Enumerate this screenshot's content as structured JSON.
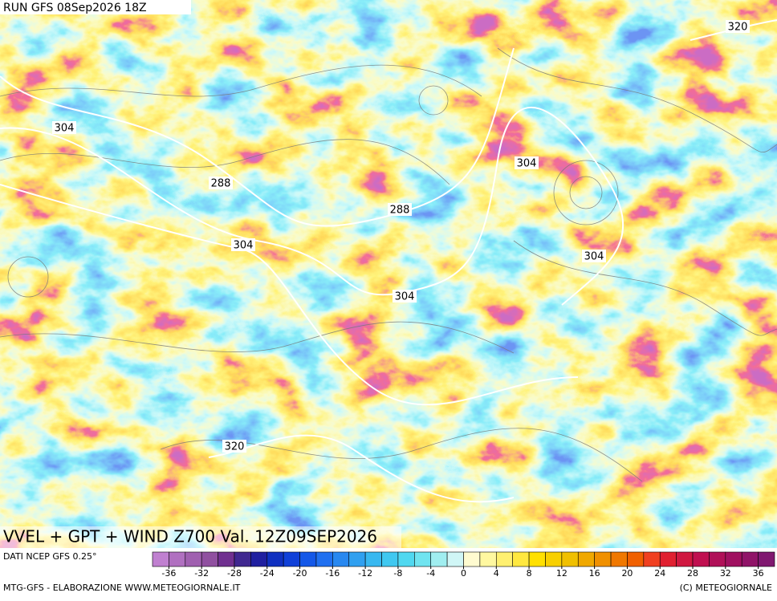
{
  "header": {
    "run": "RUN GFS 08Sep2026 18Z"
  },
  "map": {
    "title": "VVEL + GPT + WIND Z700 Val. 12Z09SEP2026",
    "contour_labels": [
      "304",
      "288",
      "304",
      "288",
      "304",
      "304",
      "304",
      "320",
      "320"
    ]
  },
  "colorbar": {
    "source": "DATI NCEP GFS 0.25°",
    "range": [
      -38,
      38
    ],
    "ticks": [
      -36,
      -32,
      -28,
      -24,
      -20,
      -16,
      -12,
      -8,
      -4,
      0,
      4,
      8,
      12,
      16,
      20,
      24,
      28,
      32,
      36
    ],
    "colors": [
      "#c080d0",
      "#b070c0",
      "#a060b0",
      "#9050a0",
      "#703090",
      "#402890",
      "#2020a0",
      "#1030c0",
      "#1040d8",
      "#1458e8",
      "#2070f0",
      "#2888f0",
      "#30a0f0",
      "#38b8f0",
      "#40c8f0",
      "#50d8f0",
      "#70e4f0",
      "#a0eef0",
      "#d0f6f6",
      "#fffbd0",
      "#fff8a0",
      "#fff070",
      "#ffe840",
      "#ffe000",
      "#f8d000",
      "#f0c000",
      "#f0a800",
      "#f09000",
      "#f07800",
      "#f06000",
      "#f04020",
      "#e02030",
      "#d01840",
      "#c01050",
      "#b01058",
      "#a01060",
      "#901468",
      "#801870"
    ]
  },
  "footer": {
    "left": "MTG-GFS - ELABORAZIONE WWW.METEOGIORNALE.IT",
    "right": "(C) METEOGIORNALE"
  }
}
